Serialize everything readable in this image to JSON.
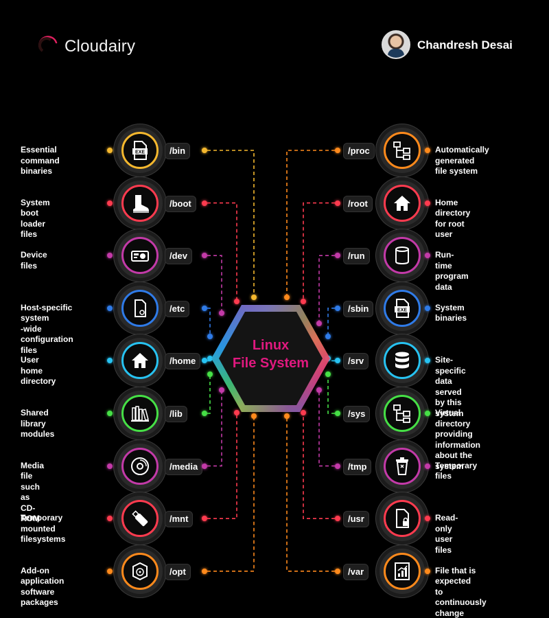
{
  "brand": {
    "name": "Cloudairy",
    "author": "Chandresh Desai"
  },
  "center": {
    "line1": "Linux",
    "line2": "File System"
  },
  "colors": {
    "yellow": "#f5b82e",
    "red": "#ff3b4f",
    "magenta": "#c33aa8",
    "blue": "#2f7be8",
    "cyan": "#27c3f2",
    "green": "#46e046",
    "orange": "#ff8a1c"
  },
  "left": [
    {
      "path": "/bin",
      "desc": "Essential command binaries",
      "lines": [
        "Essential command",
        "binaries"
      ],
      "icon": "exe-file-icon",
      "color": "#f5b82e"
    },
    {
      "path": "/boot",
      "desc": "System boot loader files",
      "lines": [
        "System boot loader",
        "files"
      ],
      "icon": "boot-icon",
      "color": "#ff3b4f"
    },
    {
      "path": "/dev",
      "desc": "Device files",
      "lines": [
        "Device files"
      ],
      "icon": "device-icon",
      "color": "#c33aa8"
    },
    {
      "path": "/etc",
      "desc": "Host-specific system-wide configuration files",
      "lines": [
        "Host-specific system",
        "-wide configuration",
        "files"
      ],
      "icon": "config-file-icon",
      "color": "#2f7be8"
    },
    {
      "path": "/home",
      "desc": "User home directory",
      "lines": [
        "User home directory"
      ],
      "icon": "home-icon",
      "color": "#27c3f2"
    },
    {
      "path": "/lib",
      "desc": "Shared library modules",
      "lines": [
        "Shared library",
        "modules"
      ],
      "icon": "library-icon",
      "color": "#46e046"
    },
    {
      "path": "/media",
      "desc": "Media file such as CD-ROM",
      "lines": [
        "Media file such as",
        "CD-ROM"
      ],
      "icon": "cd-icon",
      "color": "#c33aa8"
    },
    {
      "path": "/mnt",
      "desc": "Temporary mounted filesystems",
      "lines": [
        "Temporary mounted",
        "filesystems"
      ],
      "icon": "usb-drive-icon",
      "color": "#ff3b4f"
    },
    {
      "path": "/opt",
      "desc": "Add-on application software packages",
      "lines": [
        "Add-on application",
        "software packages"
      ],
      "icon": "package-icon",
      "color": "#ff8a1c"
    }
  ],
  "right": [
    {
      "path": "/proc",
      "desc": "Automatically generated file system",
      "lines": [
        "Automatically generated",
        "file system"
      ],
      "icon": "file-tree-icon",
      "color": "#ff8a1c"
    },
    {
      "path": "/root",
      "desc": "Home directory for root user",
      "lines": [
        "Home directory",
        "for root user"
      ],
      "icon": "home-icon",
      "color": "#ff3b4f"
    },
    {
      "path": "/run",
      "desc": "Run-time program data",
      "lines": [
        "Run-time program data"
      ],
      "icon": "cylinder-icon",
      "color": "#c33aa8"
    },
    {
      "path": "/sbin",
      "desc": "System binaries",
      "lines": [
        "System binaries"
      ],
      "icon": "exe-file-icon",
      "color": "#2f7be8"
    },
    {
      "path": "/srv",
      "desc": "Site-specific data served by this system",
      "lines": [
        "Site-specific data",
        "served by this system"
      ],
      "icon": "database-icon",
      "color": "#27c3f2"
    },
    {
      "path": "/sys",
      "desc": "Virtual directory providing information about the system",
      "lines": [
        "Virtual directory",
        "providing information",
        "about the system"
      ],
      "icon": "file-tree-icon",
      "color": "#46e046"
    },
    {
      "path": "/tmp",
      "desc": "Temporary files",
      "lines": [
        "Temporary files"
      ],
      "icon": "trash-icon",
      "color": "#c33aa8"
    },
    {
      "path": "/usr",
      "desc": "Read-only user files",
      "lines": [
        "Read-only user files"
      ],
      "icon": "locked-file-icon",
      "color": "#ff3b4f"
    },
    {
      "path": "/var",
      "desc": "File that is expected to continuously change",
      "lines": [
        "File that is expected",
        "to continuously change"
      ],
      "icon": "chart-file-icon",
      "color": "#ff8a1c"
    }
  ]
}
